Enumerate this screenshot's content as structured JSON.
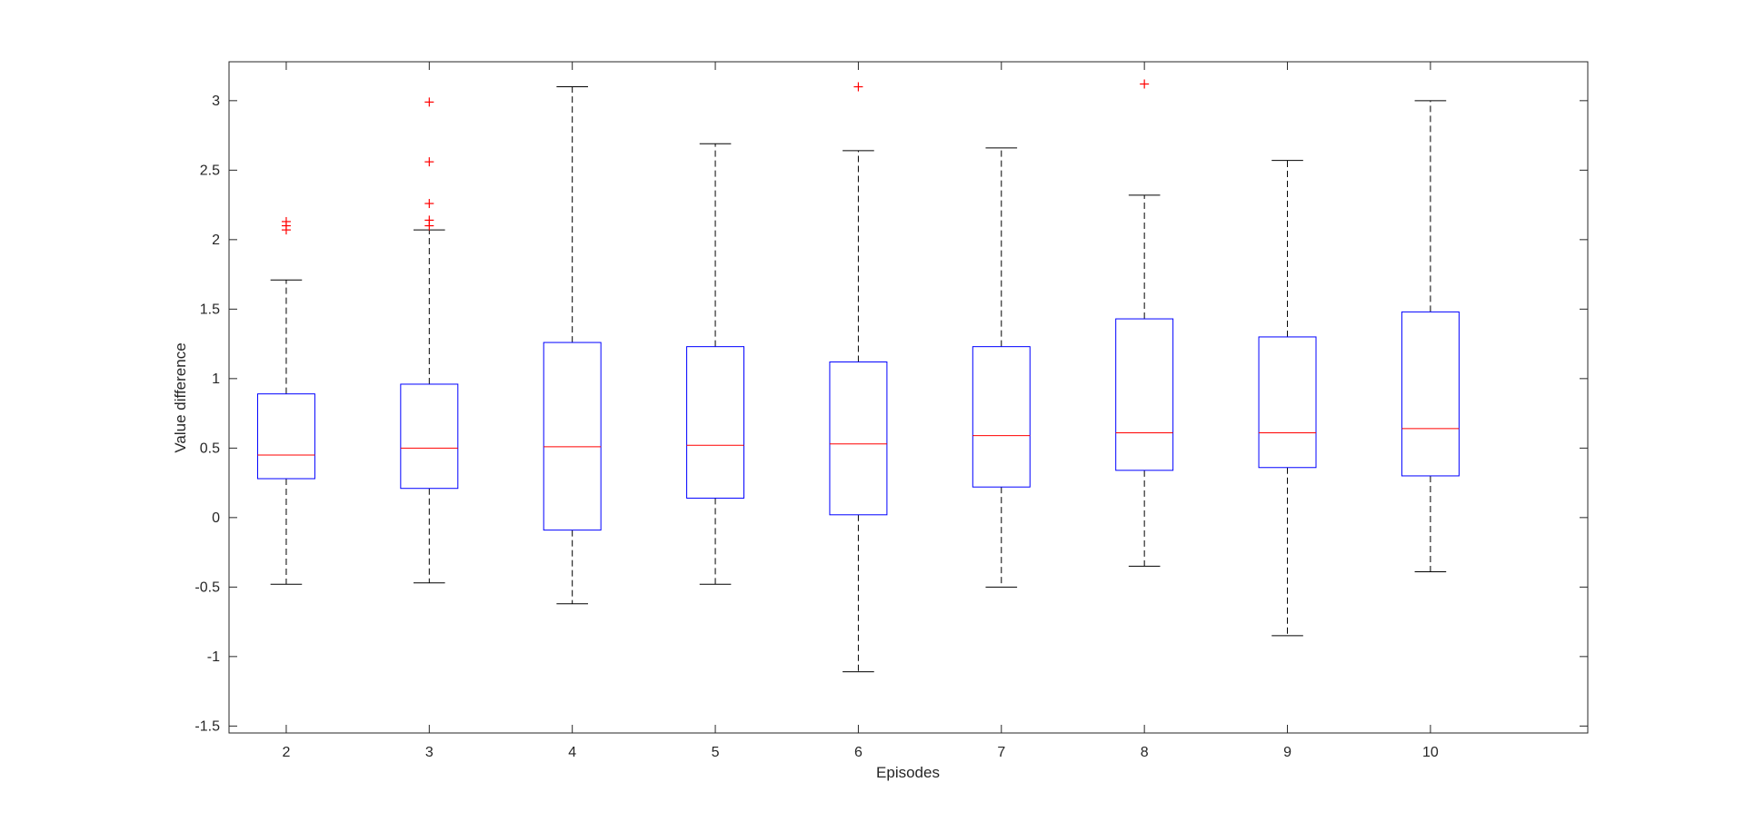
{
  "chart_data": {
    "type": "box",
    "title": "",
    "xlabel": "Episodes",
    "ylabel": "Value difference",
    "categories": [
      "2",
      "3",
      "4",
      "5",
      "6",
      "7",
      "8",
      "9",
      "10"
    ],
    "ylim": [
      -1.55,
      3.28
    ],
    "yticks": [
      -1.5,
      -1,
      -0.5,
      0,
      0.5,
      1,
      1.5,
      2,
      2.5,
      3
    ],
    "ytick_labels": [
      "-1.5",
      "-1",
      "-0.5",
      "0",
      "0.5",
      "1",
      "1.5",
      "2",
      "2.5",
      "3"
    ],
    "grid": false,
    "colors": {
      "box": "#0000ff",
      "median": "#ff0000",
      "whisker": "#000000",
      "outlier": "#ff0000",
      "axes": "#262626"
    },
    "boxes": [
      {
        "category": "2",
        "whisker_low": -0.48,
        "q1": 0.28,
        "median": 0.45,
        "q3": 0.89,
        "whisker_high": 1.71,
        "outliers": [
          2.07,
          2.1,
          2.13
        ]
      },
      {
        "category": "3",
        "whisker_low": -0.47,
        "q1": 0.21,
        "median": 0.5,
        "q3": 0.96,
        "whisker_high": 2.07,
        "outliers": [
          2.1,
          2.14,
          2.26,
          2.56,
          2.99
        ]
      },
      {
        "category": "4",
        "whisker_low": -0.62,
        "q1": -0.09,
        "median": 0.51,
        "q3": 1.26,
        "whisker_high": 3.1,
        "outliers": []
      },
      {
        "category": "5",
        "whisker_low": -0.48,
        "q1": 0.14,
        "median": 0.52,
        "q3": 1.23,
        "whisker_high": 2.69,
        "outliers": []
      },
      {
        "category": "6",
        "whisker_low": -1.11,
        "q1": 0.02,
        "median": 0.53,
        "q3": 1.12,
        "whisker_high": 2.64,
        "outliers": [
          3.1
        ]
      },
      {
        "category": "7",
        "whisker_low": -0.5,
        "q1": 0.22,
        "median": 0.59,
        "q3": 1.23,
        "whisker_high": 2.66,
        "outliers": []
      },
      {
        "category": "8",
        "whisker_low": -0.35,
        "q1": 0.34,
        "median": 0.61,
        "q3": 1.43,
        "whisker_high": 2.32,
        "outliers": [
          3.12
        ]
      },
      {
        "category": "9",
        "whisker_low": -0.85,
        "q1": 0.36,
        "median": 0.61,
        "q3": 1.3,
        "whisker_high": 2.57,
        "outliers": []
      },
      {
        "category": "10",
        "whisker_low": -0.39,
        "q1": 0.3,
        "median": 0.64,
        "q3": 1.48,
        "whisker_high": 3.0,
        "outliers": []
      }
    ]
  }
}
